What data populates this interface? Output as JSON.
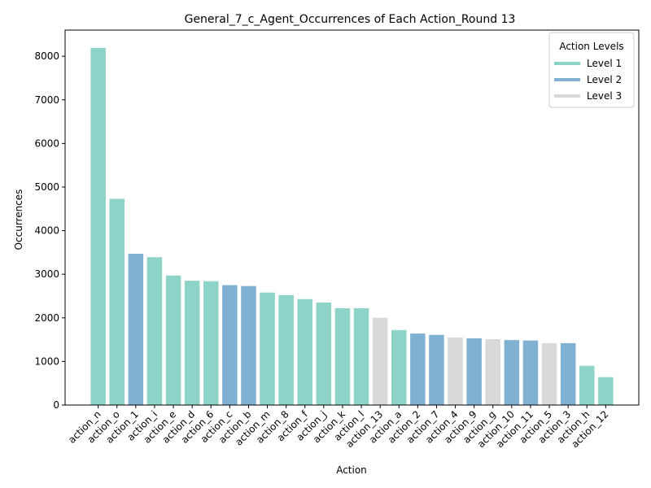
{
  "chart_data": {
    "type": "bar",
    "title": "General_7_c_Agent_Occurrences of Each Action_Round 13",
    "xlabel": "Action",
    "ylabel": "Occurrences",
    "ylim": [
      0,
      8600
    ],
    "yticks": [
      0,
      1000,
      2000,
      3000,
      4000,
      5000,
      6000,
      7000,
      8000
    ],
    "grid": false,
    "legend": {
      "title": "Action Levels",
      "placement": "top-right",
      "entries": [
        {
          "name": "Level 1",
          "color": "#8dd3c7"
        },
        {
          "name": "Level 2",
          "color": "#80b1d3"
        },
        {
          "name": "Level 3",
          "color": "#d9d9d9"
        }
      ]
    },
    "categories": [
      "action_n",
      "action_o",
      "action_1",
      "action_i",
      "action_e",
      "action_d",
      "action_6",
      "action_c",
      "action_b",
      "action_m",
      "action_8",
      "action_f",
      "action_j",
      "action_k",
      "action_l",
      "action_13",
      "action_a",
      "action_2",
      "action_7",
      "action_4",
      "action_9",
      "action_g",
      "action_10",
      "action_11",
      "action_5",
      "action_3",
      "action_h",
      "action_12"
    ],
    "values": [
      8190,
      4730,
      3470,
      3390,
      2970,
      2850,
      2840,
      2750,
      2730,
      2580,
      2520,
      2430,
      2350,
      2220,
      2220,
      2000,
      1720,
      1640,
      1610,
      1550,
      1530,
      1510,
      1490,
      1480,
      1420,
      1420,
      900,
      640
    ],
    "levels": [
      1,
      1,
      2,
      1,
      1,
      1,
      1,
      2,
      2,
      1,
      1,
      1,
      1,
      1,
      1,
      3,
      1,
      2,
      2,
      3,
      2,
      3,
      2,
      2,
      3,
      2,
      1,
      1
    ]
  }
}
